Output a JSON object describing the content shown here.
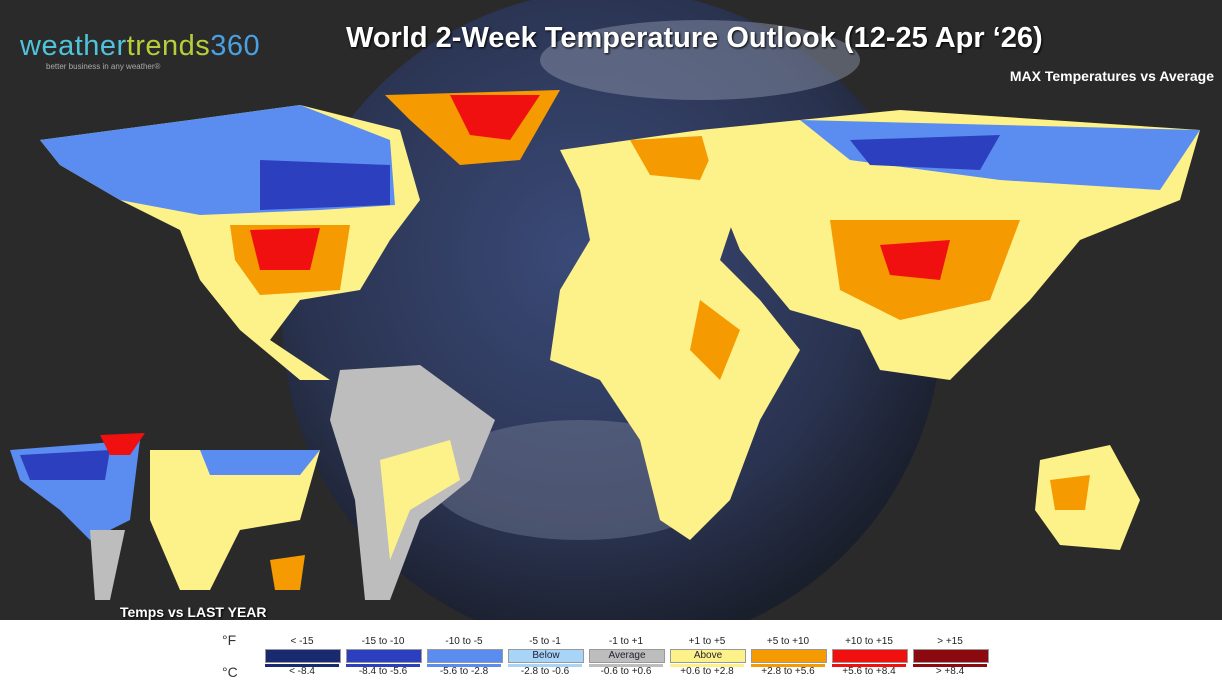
{
  "logo": {
    "part1": "weather",
    "part2": "trends",
    "part3": "360",
    "tagline": "better business in any weather®"
  },
  "title": "World 2-Week Temperature Outlook (12-25 Apr ‘26)",
  "subtitle": "MAX Temperatures vs Average",
  "inset_label": "Temps vs LAST YEAR",
  "legend": {
    "unit_f": "°F",
    "unit_c": "°C",
    "items": [
      {
        "f": "< -15",
        "c": "< -8.4",
        "color": "#1a2a6e",
        "label": ""
      },
      {
        "f": "-15 to -10",
        "c": "-8.4 to -5.6",
        "color": "#2b3fbf",
        "label": ""
      },
      {
        "f": "-10 to -5",
        "c": "-5.6 to -2.8",
        "color": "#5b8cf0",
        "label": ""
      },
      {
        "f": "-5 to -1",
        "c": "-2.8 to -0.6",
        "color": "#a8d4f8",
        "label": "Below"
      },
      {
        "f": "-1 to +1",
        "c": "-0.6 to +0.6",
        "color": "#bdbdbd",
        "label": "Average"
      },
      {
        "f": "+1 to +5",
        "c": "+0.6 to +2.8",
        "color": "#fdf18a",
        "label": "Above"
      },
      {
        "f": "+5 to +10",
        "c": "+2.8 to +5.6",
        "color": "#f59a00",
        "label": ""
      },
      {
        "f": "+10 to +15",
        "c": "+5.6 to +8.4",
        "color": "#f01010",
        "label": ""
      },
      {
        "f": "> +15",
        "c": "> +8.4",
        "color": "#8b0a10",
        "label": ""
      }
    ]
  }
}
